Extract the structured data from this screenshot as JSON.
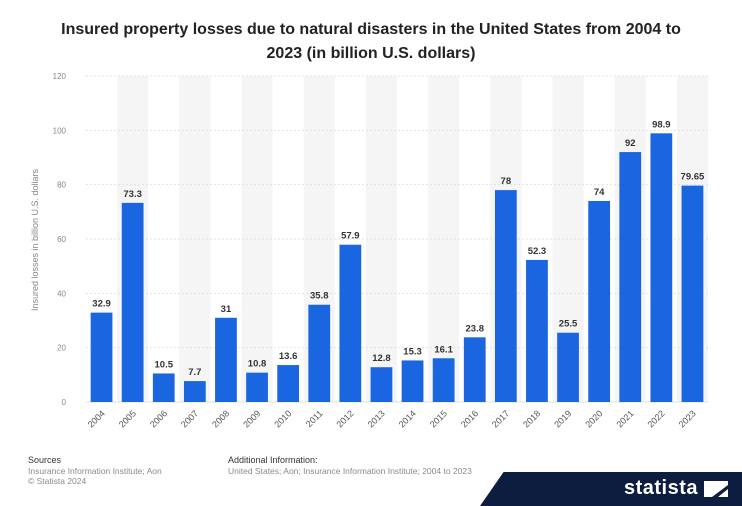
{
  "header": {
    "title_line1": "Insured property losses due to natural disasters in the United States from 2004 to",
    "title_line2": "2023 (in billion U.S. dollars)"
  },
  "chart_data": {
    "type": "bar",
    "title": "Insured property losses due to natural disasters in the United States from 2004 to 2023 (in billion U.S. dollars)",
    "xlabel": "",
    "ylabel": "Insured losses in billion U.S. dollars",
    "categories": [
      "2004",
      "2005",
      "2006",
      "2007",
      "2008",
      "2009",
      "2010",
      "2011",
      "2012",
      "2013",
      "2014",
      "2015",
      "2016",
      "2017",
      "2018",
      "2019",
      "2020",
      "2021",
      "2022",
      "2023"
    ],
    "values": [
      32.9,
      73.3,
      10.5,
      7.7,
      31,
      10.8,
      13.6,
      35.8,
      57.9,
      12.8,
      15.3,
      16.1,
      23.8,
      78,
      52.3,
      25.5,
      74,
      92,
      98.9,
      79.65
    ],
    "value_labels": [
      "32.9",
      "73.3",
      "10.5",
      "7.7",
      "31",
      "10.8",
      "13.6",
      "35.8",
      "57.9",
      "12.8",
      "15.3",
      "16.1",
      "23.8",
      "78",
      "52.3",
      "25.5",
      "74",
      "92",
      "98.9",
      "79.65"
    ],
    "ylim": [
      0,
      120
    ],
    "yticks": [
      "0",
      "20",
      "40",
      "60",
      "80",
      "100",
      "120"
    ],
    "grid": true,
    "bar_color": "#1a66e0"
  },
  "footer": {
    "sources_heading": "Sources",
    "sources_line1": "Insurance Information Institute; Aon",
    "sources_line2": "© Statista 2024",
    "additional_heading": "Additional Information:",
    "additional_line1": "United States; Aon; Insurance Information Institute; 2004 to 2023"
  },
  "brand": {
    "name": "statista",
    "logo_icon": "statista-logo-icon"
  }
}
